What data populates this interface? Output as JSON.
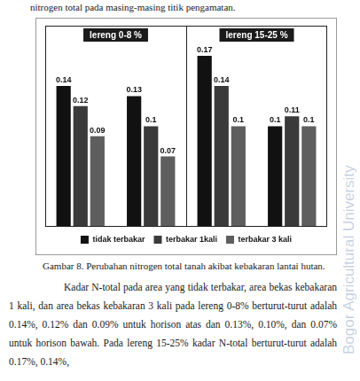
{
  "header": {
    "text": "nitrogen total pada masing-masing titik pengamatan."
  },
  "chart_data": {
    "type": "bar",
    "annotations": [
      "lereng 0-8 %",
      "lereng 15-25 %"
    ],
    "categories": [
      null,
      null,
      null,
      null
    ],
    "series": [
      {
        "name": "tidak terbakar",
        "color": "#111111",
        "values": [
          0.14,
          0.13,
          0.17,
          0.1
        ]
      },
      {
        "name": "terbakar 1kali",
        "color": "#3a3a3a",
        "values": [
          0.12,
          0.1,
          0.14,
          0.11
        ]
      },
      {
        "name": "terbakar 3 kali",
        "color": "#5e5e5e",
        "values": [
          0.09,
          0.07,
          0.1,
          0.1
        ]
      }
    ],
    "ylim": [
      0,
      0.2
    ],
    "grid": false,
    "legend": "bottom",
    "data_labels": true,
    "tick_labels": false
  },
  "caption": "Gambar 8.  Perubahan nitrogen total tanah akibat kebakaran lantai hutan.",
  "paragraph": "Kadar N-total pada area yang tidak terbakar, area bekas kebakaran 1 kali, dan area bekas kebakaran 3 kali  pada lereng 0-8% berturut-turut adalah 0.14%, 0.12% dan 0.09% untuk horison atas dan 0.13%, 0.10%, dan 0.07% untuk horison bawah. Pada lereng 15-25% kadar N-total berturut-turut adalah 0.17%, 0.14%,",
  "watermark": "Bogor Agricultural University"
}
